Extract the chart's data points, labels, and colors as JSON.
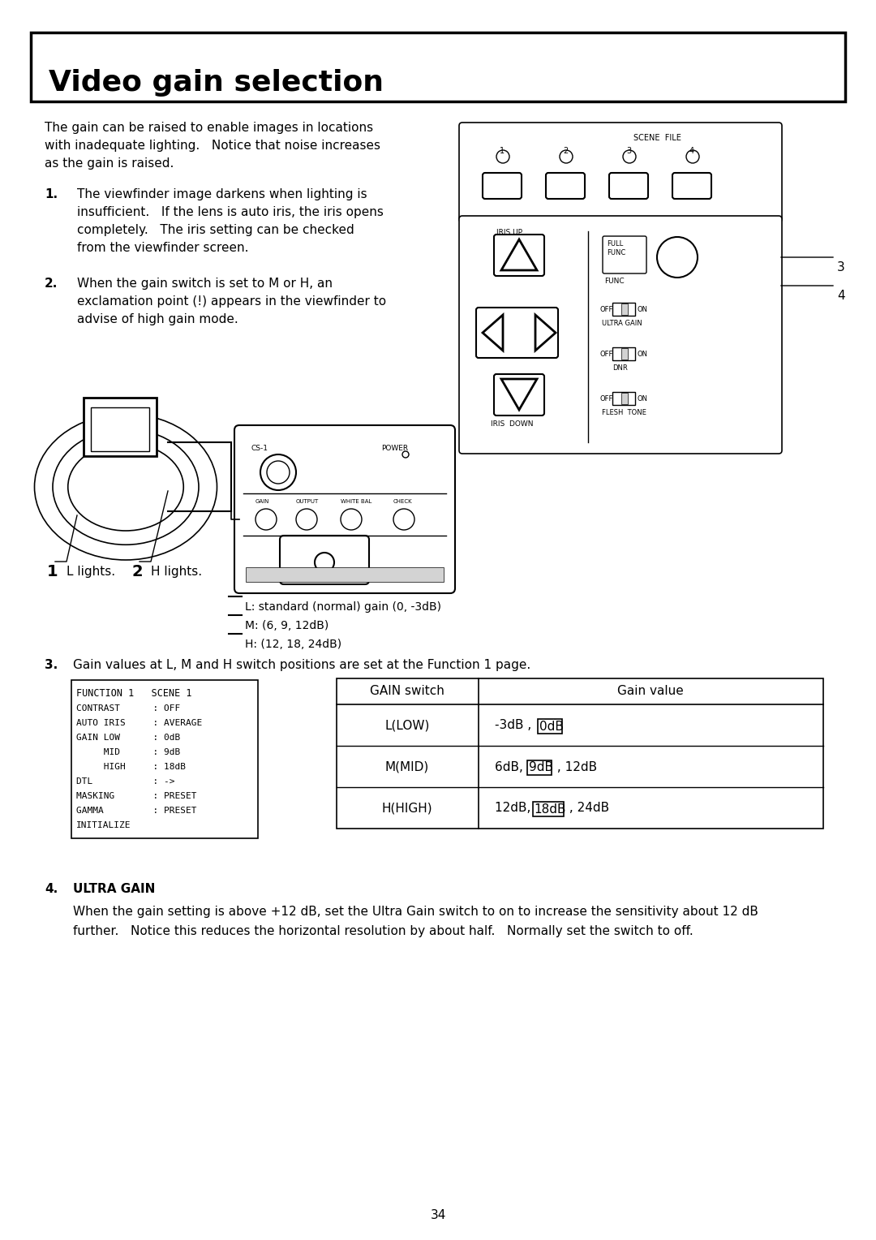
{
  "title": "Video gain selection",
  "page_number": "34",
  "bg_color": "#ffffff",
  "text_color": "#000000",
  "para1_line1": "The gain can be raised to enable images in locations",
  "para1_line2": "with inadequate lighting.   Notice that noise increases",
  "para1_line3": "as the gain is raised.",
  "item1_bold": "1.",
  "item1_lines": [
    "The viewfinder image darkens when lighting is",
    "insufficient.   If the lens is auto iris, the iris opens",
    "completely.   The iris setting can be checked",
    "from the viewfinder screen."
  ],
  "item2_bold": "2.",
  "item2_lines": [
    "When the gain switch is set to M or H, an",
    "exclamation point (!) appears in the viewfinder to",
    "advise of high gain mode."
  ],
  "legend_L": "L: standard (normal) gain (0, -3dB)",
  "legend_M": "M: (6, 9, 12dB)",
  "legend_H": "H: (12, 18, 24dB)",
  "item3_bold": "3.",
  "item3_text": "Gain values at L, M and H switch positions are set at the Function 1 page.",
  "func_title": "FUNCTION 1   SCENE 1",
  "func_lines": [
    "CONTRAST      : OFF",
    "AUTO IRIS     : AVERAGE",
    "GAIN LOW      : 0dB",
    "     MID      : 9dB",
    "     HIGH     : 18dB",
    "DTL           : ->",
    "MASKING       : PRESET",
    "GAMMA         : PRESET",
    "INITIALIZE"
  ],
  "table_col1": "GAIN switch",
  "table_col2": "Gain value",
  "table_rows": [
    [
      "L(LOW)",
      "-3dB ,  ",
      "0dB",
      ""
    ],
    [
      "M(MID)",
      "6dB,  ",
      "9dB",
      " , 12dB"
    ],
    [
      "H(HIGH)",
      "12dB,  ",
      "18dB",
      " , 24dB"
    ]
  ],
  "item4_bold": "4.",
  "item4_header": "ULTRA GAIN",
  "item4_line1": "When the gain setting is above +12 dB, set the Ultra Gain switch to on to increase the sensitivity about 12 dB",
  "item4_line2": "further.   Notice this reduces the horizontal resolution by about half.   Normally set the switch to off.",
  "panel_label3": "3",
  "panel_label4": "4"
}
